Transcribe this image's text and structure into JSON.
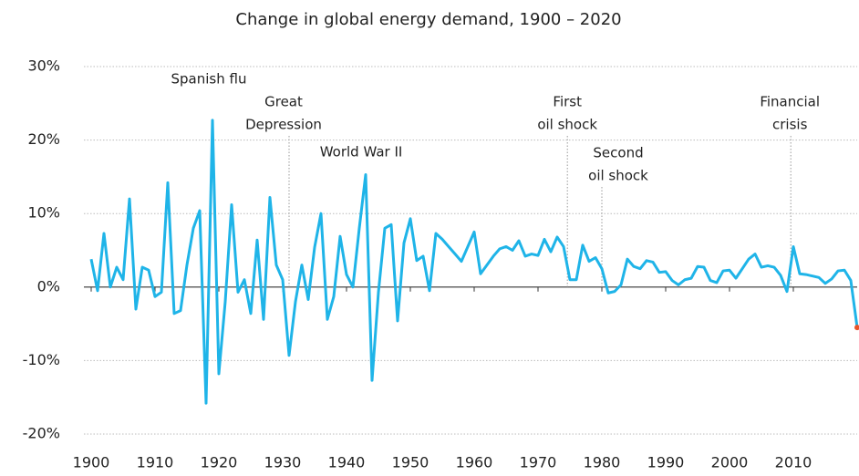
{
  "chart_data": {
    "type": "line",
    "title": "Change in global energy demand, 1900 – 2020",
    "x": [
      1900,
      1901,
      1902,
      1903,
      1904,
      1905,
      1906,
      1907,
      1908,
      1909,
      1910,
      1911,
      1912,
      1913,
      1914,
      1915,
      1916,
      1917,
      1918,
      1919,
      1920,
      1921,
      1922,
      1923,
      1924,
      1925,
      1926,
      1927,
      1928,
      1929,
      1930,
      1931,
      1932,
      1933,
      1934,
      1935,
      1936,
      1937,
      1938,
      1939,
      1940,
      1941,
      1942,
      1943,
      1944,
      1945,
      1946,
      1947,
      1948,
      1949,
      1950,
      1951,
      1952,
      1953,
      1954,
      1955,
      1956,
      1957,
      1958,
      1959,
      1960,
      1961,
      1962,
      1963,
      1964,
      1965,
      1966,
      1967,
      1968,
      1969,
      1970,
      1971,
      1972,
      1973,
      1974,
      1975,
      1976,
      1977,
      1978,
      1979,
      1980,
      1981,
      1982,
      1983,
      1984,
      1985,
      1986,
      1987,
      1988,
      1989,
      1990,
      1991,
      1992,
      1993,
      1994,
      1995,
      1996,
      1997,
      1998,
      1999,
      2000,
      2001,
      2002,
      2003,
      2004,
      2005,
      2006,
      2007,
      2008,
      2009,
      2010,
      2011,
      2012,
      2013,
      2014,
      2015,
      2016,
      2017,
      2018,
      2019,
      2020
    ],
    "series": [
      {
        "color": "#1fb4e8",
        "last_point_color": "#e8542a",
        "values": [
          3.8,
          -0.5,
          7.3,
          0,
          2.7,
          1,
          12,
          -3,
          2.7,
          2.3,
          -1.3,
          -0.7,
          14.2,
          -3.6,
          -3.2,
          3,
          8,
          10.4,
          -15.8,
          22.7,
          -11.8,
          -2,
          11.2,
          -0.7,
          1,
          -3.6,
          6.4,
          -4.4,
          12.2,
          3,
          1,
          -9.3,
          -2,
          3,
          -1.7,
          5.4,
          10,
          -4.4,
          -1.3,
          6.9,
          1.7,
          0,
          8,
          15.3,
          -12.7,
          -0.7,
          8,
          8.5,
          -4.6,
          6,
          9.3,
          3.6,
          4.2,
          -0.5,
          7.3,
          6.5,
          5.5,
          4.5,
          3.5,
          5.5,
          7.5,
          1.8,
          3,
          4.2,
          5.2,
          5.5,
          5,
          6.3,
          4.2,
          4.5,
          4.3,
          6.5,
          4.8,
          6.8,
          5.5,
          1,
          1,
          5.7,
          3.5,
          4,
          2.5,
          -0.8,
          -0.6,
          0.3,
          3.8,
          2.8,
          2.5,
          3.6,
          3.4,
          2,
          2.1,
          0.9,
          0.3,
          1,
          1.2,
          2.8,
          2.7,
          0.9,
          0.6,
          2.2,
          2.3,
          1.2,
          2.5,
          3.8,
          4.5,
          2.7,
          2.9,
          2.7,
          1.6,
          -0.6,
          5.5,
          1.8,
          1.7,
          1.5,
          1.3,
          0.5,
          1.1,
          2.2,
          2.3,
          0.9,
          -5.5
        ]
      }
    ],
    "xlim": [
      1900,
      2020
    ],
    "xticks": [
      1900,
      1910,
      1920,
      1930,
      1940,
      1950,
      1960,
      1970,
      1980,
      1990,
      2000,
      2010
    ],
    "ylim": [
      -20,
      30
    ],
    "yticks": [
      {
        "value": -20,
        "label": "-20%"
      },
      {
        "value": -10,
        "label": "-10%"
      },
      {
        "value": 0,
        "label": "0%"
      },
      {
        "value": 10,
        "label": "10%"
      },
      {
        "value": 20,
        "label": "20%"
      },
      {
        "value": 30,
        "label": "30%"
      }
    ],
    "grid": true,
    "annotations": [
      {
        "text": [
          "Spanish flu"
        ],
        "x": 1919,
        "line": false
      },
      {
        "text": [
          "Great",
          "Depression"
        ],
        "x": 1931,
        "line": true
      },
      {
        "text": [
          "World War II"
        ],
        "x": 1944,
        "line": false
      },
      {
        "text": [
          "First",
          "oil shock"
        ],
        "x": 1974.6,
        "line": true
      },
      {
        "text": [
          "Second",
          "oil shock"
        ],
        "x": 1980,
        "line": true
      },
      {
        "text": [
          "Financial",
          "crisis"
        ],
        "x": 2009.6,
        "line": true
      }
    ]
  }
}
